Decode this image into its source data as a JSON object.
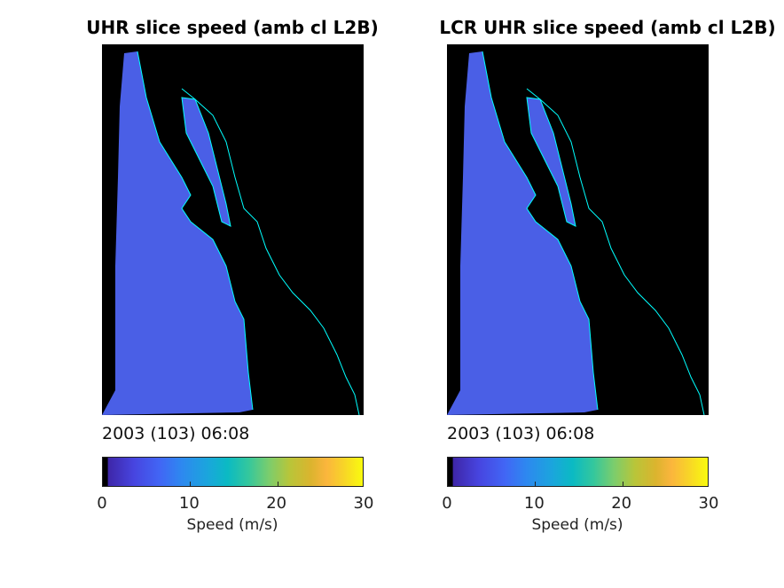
{
  "chart_data": [
    {
      "type": "heatmap",
      "title": "UHR slice speed (amb cl L2B)",
      "timestamp": "2003 (103) 06:08",
      "colorbar": {
        "label": "Speed (m/s)",
        "range": [
          0,
          30
        ],
        "ticks": [
          0,
          10,
          20,
          30
        ],
        "colormap": "parula"
      },
      "typical_value": 5
    },
    {
      "type": "heatmap",
      "title": "LCR UHR slice speed (amb cl L2B)",
      "timestamp": "2003 (103) 06:08",
      "colorbar": {
        "label": "Speed (m/s)",
        "range": [
          0,
          30
        ],
        "ticks": [
          0,
          10,
          20,
          30
        ],
        "colormap": "parula"
      },
      "typical_value": 5
    }
  ],
  "colors": {
    "background": "#000000",
    "coastline": "#00ffff",
    "field": "#4a5fe6"
  }
}
